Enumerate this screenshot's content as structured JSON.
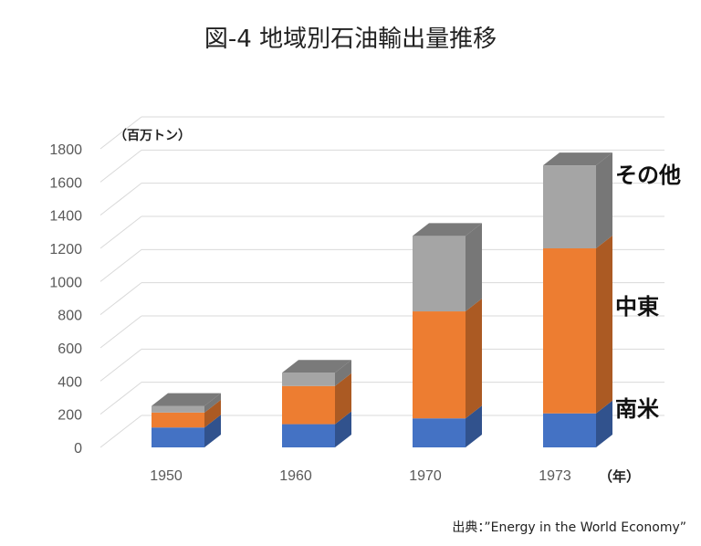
{
  "title": "図-4 地域別石油輸出量推移",
  "unit_label": "（百万トン）",
  "x_unit_label": "（年）",
  "source": "出典：”Energy in the World Economy”",
  "region_labels": [
    "南米",
    "中東",
    "その他"
  ],
  "colors": {
    "南米": "#4472c4",
    "中東": "#ed7d31",
    "その他": "#a5a5a5",
    "grid": "#d9d9d9",
    "axis_text": "#595959"
  },
  "chart_data": {
    "type": "bar",
    "stacked": true,
    "three_d": true,
    "categories": [
      "1950",
      "1960",
      "1970",
      "1973"
    ],
    "series": [
      {
        "name": "南米",
        "values": [
          120,
          140,
          175,
          205
        ]
      },
      {
        "name": "中東",
        "values": [
          90,
          230,
          645,
          995
        ]
      },
      {
        "name": "その他",
        "values": [
          40,
          80,
          455,
          500
        ]
      }
    ],
    "ylim": [
      0,
      1800
    ],
    "yticks": [
      0,
      200,
      400,
      600,
      800,
      1000,
      1200,
      1400,
      1600,
      1800
    ],
    "grid": true,
    "legend": "inline labels to the right of the last bar"
  }
}
